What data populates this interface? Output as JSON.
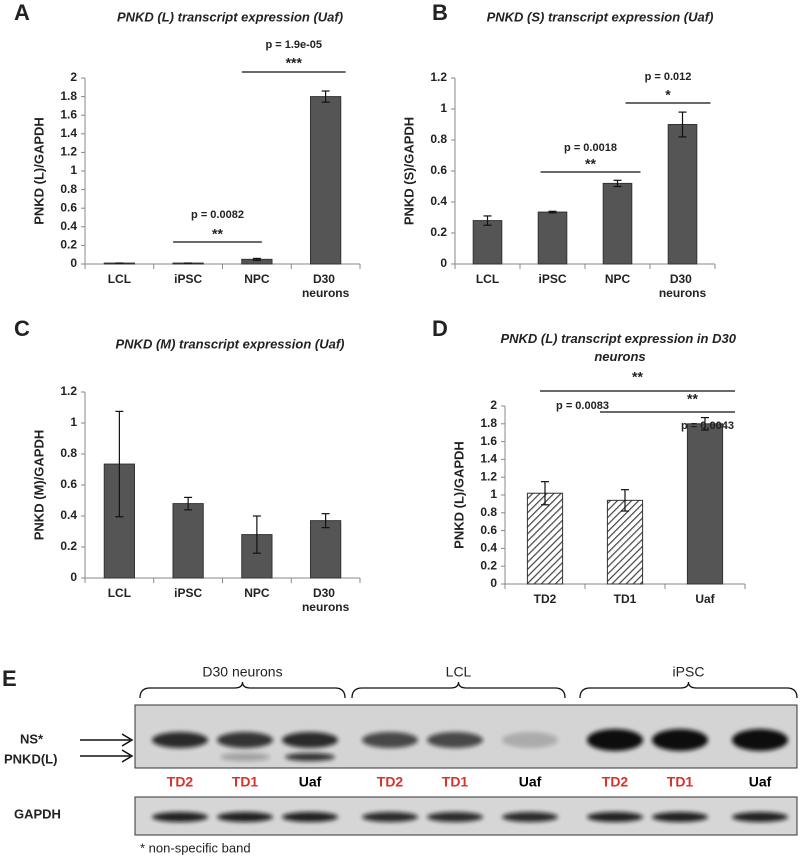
{
  "chart_data": [
    {
      "type": "bar",
      "panel": "A",
      "title": "PNKD (L) transcript expression (Uaf)",
      "y_label": "PNKD (L)/GAPDH",
      "categories": [
        "LCL",
        "iPSC",
        "NPC",
        "D30 neurons"
      ],
      "values": [
        0.01,
        0.01,
        0.05,
        1.8
      ],
      "errors": [
        0,
        0,
        0.01,
        0.06
      ],
      "color": "#555555",
      "ylim": [
        0,
        2
      ],
      "yticks": [
        0,
        0.2,
        0.4,
        0.6,
        0.8,
        1,
        1.2,
        1.4,
        1.6,
        1.8,
        2
      ],
      "annotations": [
        {
          "label": "p = 1.9e-05",
          "stars": "***",
          "between": [
            "NPC",
            "D30 neurons"
          ]
        },
        {
          "label": "p = 0.0082",
          "stars": "**",
          "between": [
            "iPSC",
            "NPC"
          ]
        }
      ]
    },
    {
      "type": "bar",
      "panel": "B",
      "title": "PNKD (S) transcript expression (Uaf)",
      "y_label": "PNKD (S)/GAPDH",
      "categories": [
        "LCL",
        "iPSC",
        "NPC",
        "D30 neurons"
      ],
      "values": [
        0.28,
        0.335,
        0.52,
        0.9
      ],
      "errors": [
        0.03,
        0.005,
        0.02,
        0.08
      ],
      "color": "#555555",
      "ylim": [
        0,
        1.2
      ],
      "yticks": [
        0,
        0.2,
        0.4,
        0.6,
        0.8,
        1,
        1.2
      ],
      "annotations": [
        {
          "label": "p = 0.0018",
          "stars": "**",
          "between": [
            "iPSC",
            "NPC"
          ]
        },
        {
          "label": "p = 0.012",
          "stars": "*",
          "between": [
            "NPC",
            "D30 neurons"
          ]
        }
      ]
    },
    {
      "type": "bar",
      "panel": "C",
      "title": "PNKD (M) transcript expression (Uaf)",
      "y_label": "PNKD (M)/GAPDH",
      "categories": [
        "LCL",
        "iPSC",
        "NPC",
        "D30 neurons"
      ],
      "values": [
        0.735,
        0.48,
        0.28,
        0.37
      ],
      "errors": [
        0.34,
        0.04,
        0.12,
        0.045
      ],
      "color": "#555555",
      "ylim": [
        0,
        1.2
      ],
      "yticks": [
        0,
        0.2,
        0.4,
        0.6,
        0.8,
        1,
        1.2
      ],
      "annotations": []
    },
    {
      "type": "bar",
      "panel": "D",
      "title": "PNKD (L) transcript expression in D30 neurons",
      "y_label": "PNKD (L)/GAPDH",
      "categories": [
        "TD2",
        "TD1",
        "Uaf"
      ],
      "values": [
        1.02,
        0.94,
        1.8
      ],
      "errors": [
        0.13,
        0.12,
        0.07
      ],
      "fills": [
        "hatch",
        "hatch",
        "solid"
      ],
      "color": "#555555",
      "ylim": [
        0,
        2
      ],
      "yticks": [
        0,
        0.2,
        0.4,
        0.6,
        0.8,
        1,
        1.2,
        1.4,
        1.6,
        1.8,
        2
      ],
      "annotations": [
        {
          "label": "p = 0.0083",
          "stars": "**",
          "between": [
            "TD2",
            "Uaf"
          ]
        },
        {
          "label": "p = 0.0043",
          "stars": "**",
          "between": [
            "TD1",
            "Uaf"
          ]
        }
      ]
    }
  ],
  "blot": {
    "panel": "E",
    "groups": [
      "D30 neurons",
      "LCL",
      "iPSC"
    ],
    "lanes": [
      {
        "label": "TD2",
        "color": "#d9312b"
      },
      {
        "label": "TD1",
        "color": "#d9312b"
      },
      {
        "label": "Uaf",
        "color": "#000000"
      },
      {
        "label": "TD2",
        "color": "#d9312b"
      },
      {
        "label": "TD1",
        "color": "#d9312b"
      },
      {
        "label": "Uaf",
        "color": "#000000"
      },
      {
        "label": "TD2",
        "color": "#d9312b"
      },
      {
        "label": "TD1",
        "color": "#d9312b"
      },
      {
        "label": "Uaf",
        "color": "#000000"
      }
    ],
    "rows": [
      "NS*",
      "PNKD(L)",
      "GAPDH"
    ],
    "footnote": "* non-specific band"
  }
}
